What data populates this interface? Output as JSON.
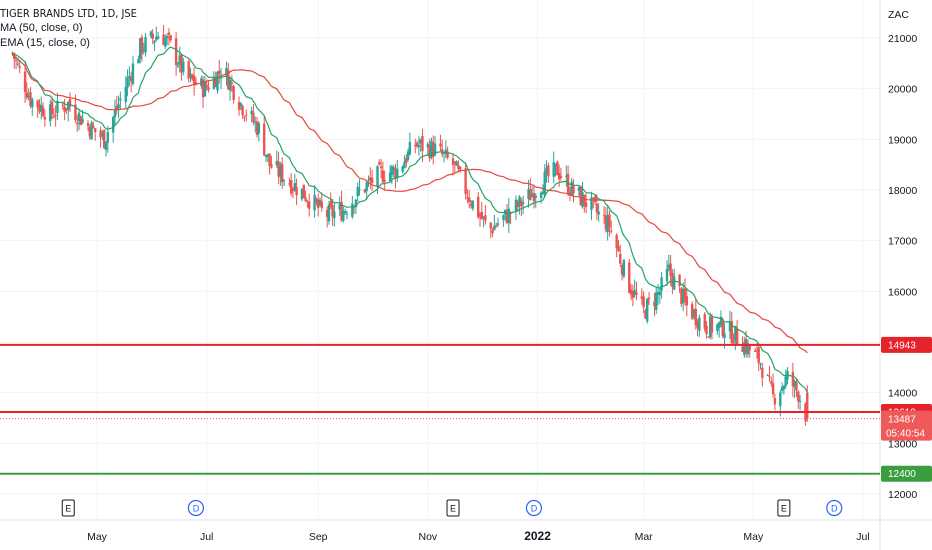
{
  "legend": {
    "title": "TIGER BRANDS LTD, 1D, JSE",
    "ma": "MA (50, close, 0)",
    "ema": "EMA (15, close, 0)"
  },
  "currency": "ZAC",
  "chart_data": {
    "type": "candlestick",
    "title": "TIGER BRANDS LTD, 1D, JSE",
    "y_ticks": [
      12000,
      13000,
      14000,
      16000,
      17000,
      18000,
      19000,
      20000,
      21000
    ],
    "x_ticks": [
      "May",
      "Jul",
      "Sep",
      "Nov",
      "2022",
      "Mar",
      "May",
      "Jul"
    ],
    "x_tick_bold": "2022",
    "ylim": [
      11500,
      21700
    ],
    "series": [
      {
        "name": "MA (50, close, 0)",
        "color": "#e5483d"
      },
      {
        "name": "EMA (15, close, 0)",
        "color": "#26a269"
      }
    ],
    "horizontal_levels": [
      {
        "value": 14943,
        "label": "14943",
        "color": "#e5232b"
      },
      {
        "value": 13619,
        "label": "13619",
        "color": "#e5232b"
      },
      {
        "value": 12400,
        "label": "12400",
        "color": "#3a9e3f"
      }
    ],
    "last_price": {
      "label": "13487",
      "countdown": "05:40:54",
      "color": "#ee5a5a"
    },
    "events": [
      {
        "date": "2021-04-15",
        "type": "E"
      },
      {
        "date": "2021-06-25",
        "type": "D"
      },
      {
        "date": "2021-11-15",
        "type": "E"
      },
      {
        "date": "2021-12-30",
        "type": "D"
      },
      {
        "date": "2022-05-18",
        "type": "E"
      },
      {
        "date": "2022-06-15",
        "type": "D"
      }
    ],
    "close_path": [
      [
        "2021-03-15",
        20700
      ],
      [
        "2021-03-25",
        19800
      ],
      [
        "2021-04-05",
        19500
      ],
      [
        "2021-04-15",
        19700
      ],
      [
        "2021-04-25",
        19300
      ],
      [
        "2021-05-05",
        19000
      ],
      [
        "2021-05-12",
        19600
      ],
      [
        "2021-05-25",
        20800
      ],
      [
        "2021-06-05",
        21100
      ],
      [
        "2021-06-10",
        20900
      ],
      [
        "2021-06-20",
        20200
      ],
      [
        "2021-06-30",
        20000
      ],
      [
        "2021-07-10",
        20400
      ],
      [
        "2021-07-20",
        19700
      ],
      [
        "2021-07-30",
        19200
      ],
      [
        "2021-08-05",
        18500
      ],
      [
        "2021-08-15",
        18200
      ],
      [
        "2021-08-25",
        17900
      ],
      [
        "2021-09-05",
        17500
      ],
      [
        "2021-09-15",
        17600
      ],
      [
        "2021-09-25",
        18000
      ],
      [
        "2021-10-05",
        18300
      ],
      [
        "2021-10-15",
        18400
      ],
      [
        "2021-10-25",
        18900
      ],
      [
        "2021-11-05",
        18800
      ],
      [
        "2021-11-15",
        18500
      ],
      [
        "2021-11-25",
        17800
      ],
      [
        "2021-12-05",
        17200
      ],
      [
        "2021-12-15",
        17500
      ],
      [
        "2021-12-25",
        17800
      ],
      [
        "2022-01-05",
        18200
      ],
      [
        "2022-01-12",
        18400
      ],
      [
        "2022-01-20",
        18000
      ],
      [
        "2022-01-30",
        17700
      ],
      [
        "2022-02-10",
        17300
      ],
      [
        "2022-02-20",
        16200
      ],
      [
        "2022-03-01",
        15600
      ],
      [
        "2022-03-10",
        16000
      ],
      [
        "2022-03-15",
        16400
      ],
      [
        "2022-03-25",
        15700
      ],
      [
        "2022-04-05",
        15300
      ],
      [
        "2022-04-15",
        15300
      ],
      [
        "2022-04-25",
        15000
      ],
      [
        "2022-05-05",
        14600
      ],
      [
        "2022-05-12",
        13900
      ],
      [
        "2022-05-20",
        14300
      ],
      [
        "2022-05-26",
        14000
      ],
      [
        "2022-05-31",
        13487
      ]
    ]
  }
}
